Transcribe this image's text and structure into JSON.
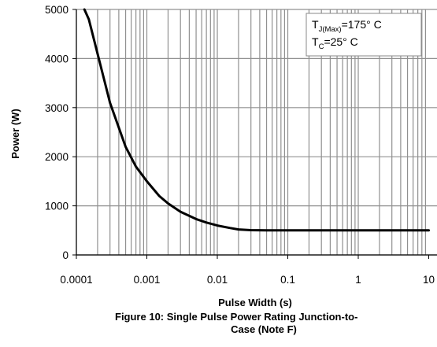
{
  "chart_data": {
    "type": "line",
    "title": "Figure 10: Single Pulse Power Rating Junction-to-Case (Note F)",
    "title_lines": [
      "Figure 10: Single Pulse Power Rating Junction-to-",
      "Case (Note F)"
    ],
    "xlabel": "Pulse Width (s)",
    "ylabel": "Power (W)",
    "x_scale": "log",
    "xlim": [
      0.0001,
      10
    ],
    "ylim": [
      0,
      5000
    ],
    "x_tick_labels": [
      "0.0001",
      "0.001",
      "0.01",
      "0.1",
      "1",
      "10"
    ],
    "y_tick_labels": [
      "0",
      "1000",
      "2000",
      "3000",
      "4000",
      "5000"
    ],
    "grid": true,
    "legend": "none",
    "annotations": [
      {
        "main": "T",
        "sub": "J(Max)",
        "rest": "=175° C"
      },
      {
        "main": "T",
        "sub": "C",
        "rest": "=25° C"
      }
    ],
    "annotation_position": "top-right",
    "line_color": "#000000",
    "grid_color": "#909090",
    "series": [
      {
        "x": [
          0.00013,
          0.00015,
          0.0002,
          0.0003,
          0.0005,
          0.0007,
          0.001,
          0.0015,
          0.002,
          0.003,
          0.005,
          0.007,
          0.01,
          0.015,
          0.02,
          0.03,
          0.05,
          0.1,
          0.3,
          1,
          3,
          10
        ],
        "values": [
          5000,
          4800,
          4100,
          3100,
          2200,
          1800,
          1500,
          1200,
          1050,
          880,
          730,
          660,
          600,
          550,
          520,
          505,
          500,
          500,
          500,
          500,
          500,
          500
        ]
      }
    ]
  }
}
